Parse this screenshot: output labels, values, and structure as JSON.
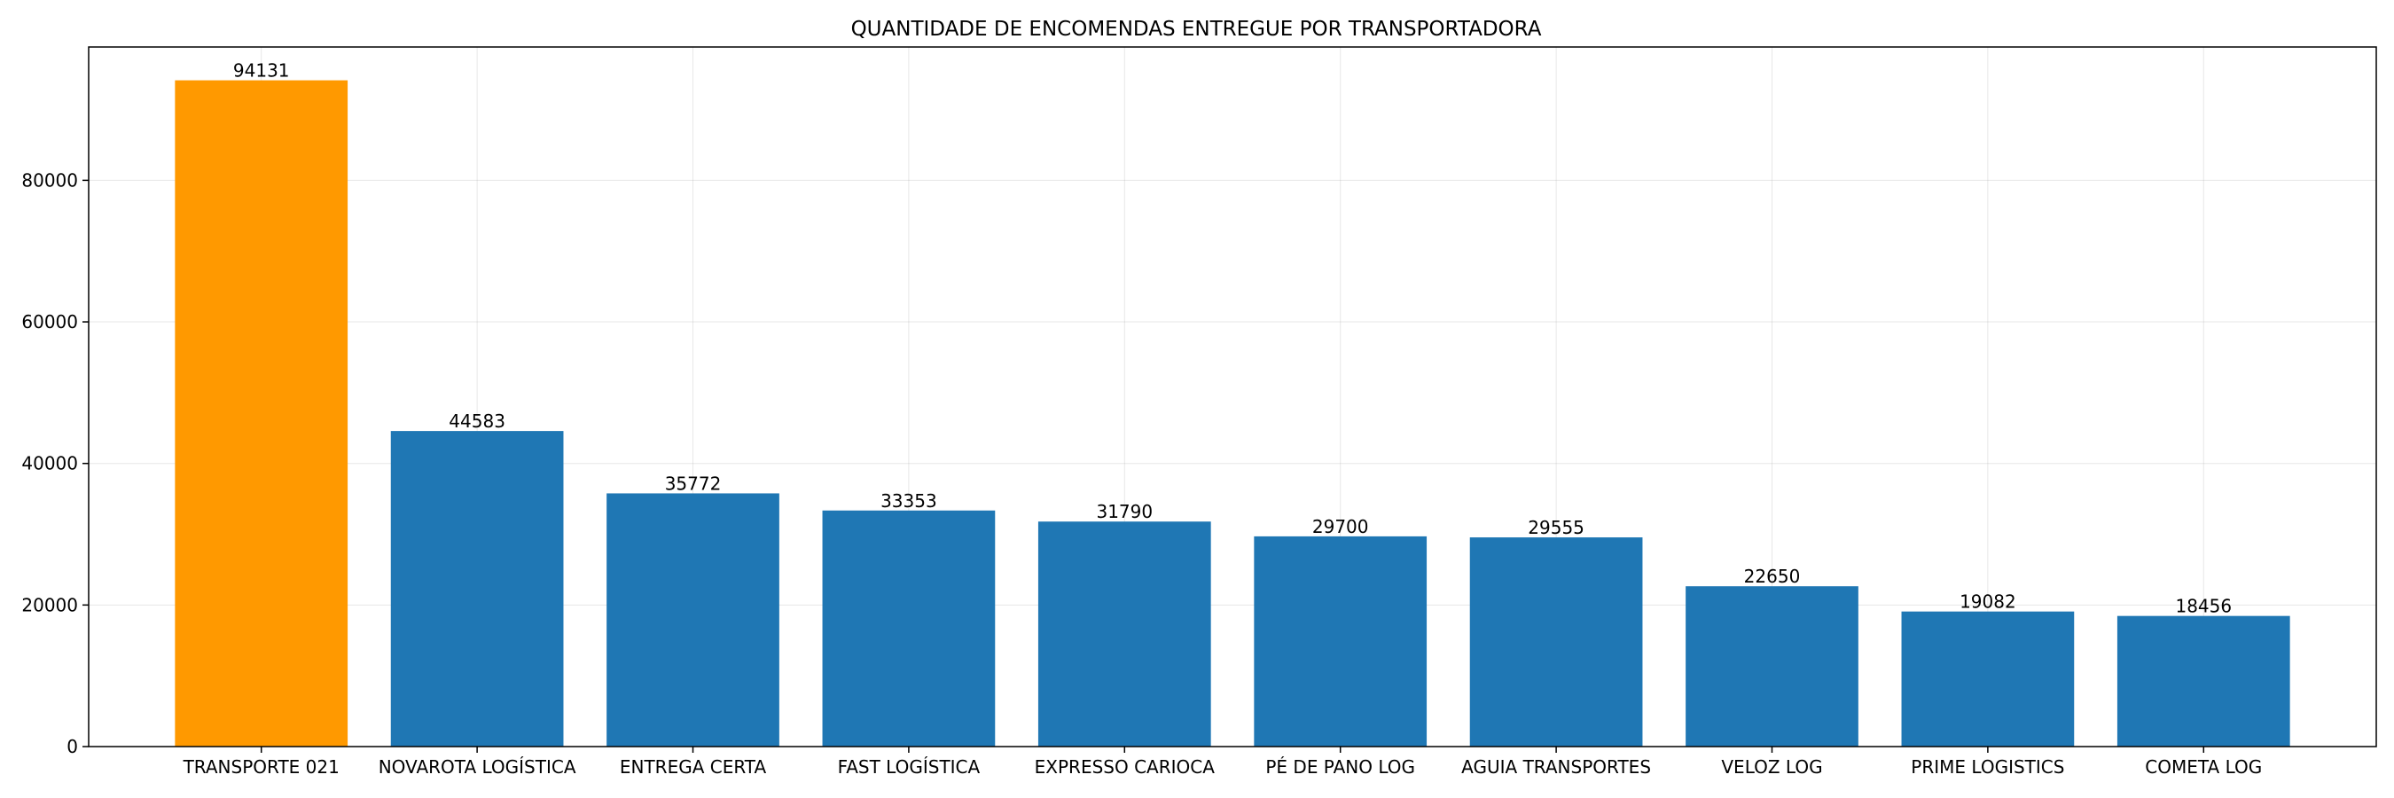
{
  "chart_data": {
    "type": "bar",
    "title": "QUANTIDADE DE ENCOMENDAS ENTREGUE POR TRANSPORTADORA",
    "xlabel": "",
    "ylabel": "",
    "categories": [
      "TRANSPORTE 021",
      "NOVAROTA LOGÍSTICA",
      "ENTREGA CERTA",
      "FAST LOGÍSTICA",
      "EXPRESSO CARIOCA",
      "PÉ DE PANO LOG",
      "AGUIA TRANSPORTES",
      "VELOZ LOG",
      "PRIME LOGISTICS",
      "COMETA LOG"
    ],
    "values": [
      94131,
      44583,
      35772,
      33353,
      31790,
      29700,
      29555,
      22650,
      19082,
      18456
    ],
    "value_labels": [
      "94131",
      "44583",
      "35772",
      "33353",
      "31790",
      "29700",
      "29555",
      "22650",
      "19082",
      "18456"
    ],
    "ylim": [
      0,
      98838
    ],
    "yticks": [
      0,
      20000,
      40000,
      60000,
      80000
    ],
    "ytick_labels": [
      "0",
      "20000",
      "40000",
      "60000",
      "80000"
    ],
    "grid": true,
    "legend": "none",
    "colors": {
      "highlight": "#ff9900",
      "default": "#1f77b4"
    },
    "highlight_index": 0
  }
}
